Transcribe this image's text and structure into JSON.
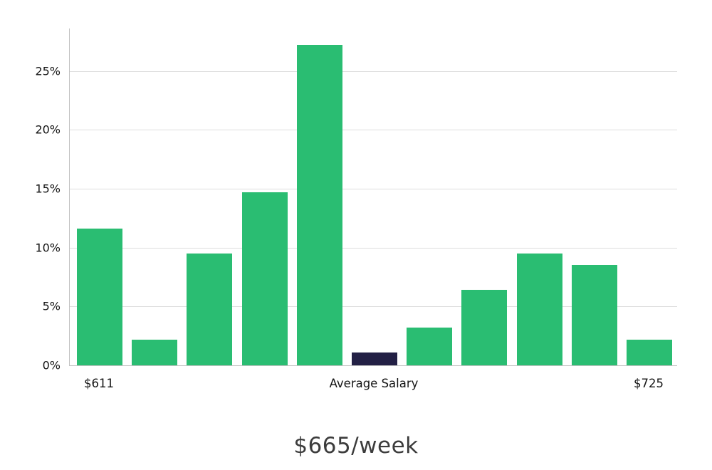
{
  "chart_data": {
    "type": "bar",
    "title": "$665/week",
    "values": [
      11.6,
      2.2,
      9.5,
      14.7,
      27.2,
      1.1,
      3.2,
      6.4,
      9.5,
      8.5,
      2.2
    ],
    "highlight_index": 5,
    "bar_color": "#2abd72",
    "highlight_color": "#232045",
    "ylim": [
      0,
      28.6
    ],
    "y_ticks": [
      {
        "value": 0,
        "label": "0%"
      },
      {
        "value": 5,
        "label": "5%"
      },
      {
        "value": 10,
        "label": "10%"
      },
      {
        "value": 15,
        "label": "15%"
      },
      {
        "value": 20,
        "label": "20%"
      },
      {
        "value": 25,
        "label": "25%"
      }
    ],
    "x_ticks": [
      {
        "bar": 0,
        "label": "$611"
      },
      {
        "bar": 5,
        "label": "Average Salary"
      },
      {
        "bar": 10,
        "label": "$725"
      }
    ],
    "grid": true,
    "legend": "none",
    "xlabel": "",
    "ylabel": ""
  }
}
